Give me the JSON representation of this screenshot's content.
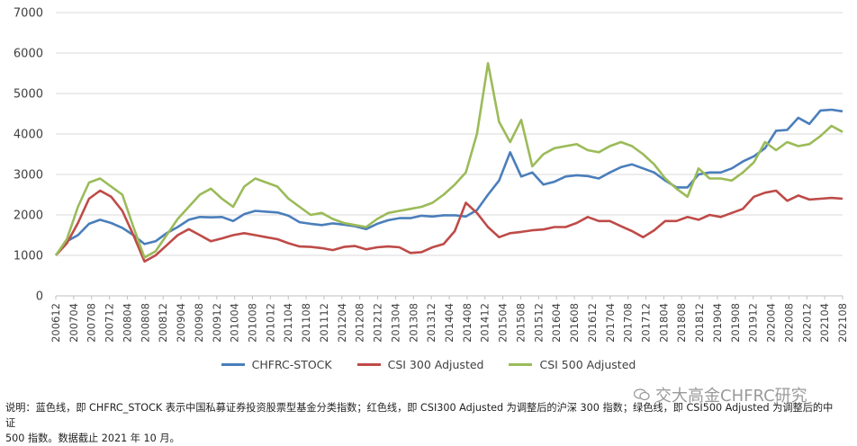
{
  "chart_data": {
    "type": "line",
    "title": "",
    "ylim": [
      0,
      7000
    ],
    "yticks": [
      0,
      1000,
      2000,
      3000,
      4000,
      5000,
      6000,
      7000
    ],
    "grid": true,
    "legend_position": "bottom",
    "x_tick_labels": [
      "200612",
      "200704",
      "200708",
      "200712",
      "200804",
      "200808",
      "200812",
      "200904",
      "200908",
      "200912",
      "201004",
      "201008",
      "201012",
      "201104",
      "201108",
      "201112",
      "201204",
      "201208",
      "201212",
      "201304",
      "201308",
      "201312",
      "201404",
      "201408",
      "201412",
      "201504",
      "201508",
      "201512",
      "201604",
      "201608",
      "201612",
      "201704",
      "201708",
      "201712",
      "201804",
      "201808",
      "201812",
      "201904",
      "201908",
      "201912",
      "202004",
      "202008",
      "202012",
      "202104",
      "202108"
    ],
    "series": [
      {
        "name": "CHFRC-STOCK",
        "color": "#4a7ebb",
        "values": [
          1000,
          1350,
          1500,
          1780,
          1880,
          1800,
          1680,
          1500,
          1280,
          1350,
          1550,
          1700,
          1880,
          1950,
          1940,
          1950,
          1850,
          2020,
          2100,
          2080,
          2060,
          1980,
          1820,
          1780,
          1750,
          1790,
          1760,
          1720,
          1650,
          1780,
          1870,
          1920,
          1920,
          1980,
          1960,
          1990,
          1990,
          1960,
          2120,
          2500,
          2850,
          3550,
          2950,
          3050,
          2750,
          2820,
          2950,
          2980,
          2960,
          2900,
          3050,
          3180,
          3250,
          3150,
          3050,
          2850,
          2680,
          2680,
          3000,
          3050,
          3050,
          3150,
          3320,
          3450,
          3650,
          4080,
          4100,
          4400,
          4250,
          4580,
          4600,
          4560
        ]
      },
      {
        "name": "CSI 300 Adjusted",
        "color": "#be4b48",
        "values": [
          1000,
          1300,
          1800,
          2400,
          2600,
          2450,
          2100,
          1500,
          850,
          1000,
          1250,
          1500,
          1650,
          1500,
          1350,
          1420,
          1500,
          1550,
          1500,
          1450,
          1400,
          1300,
          1220,
          1210,
          1180,
          1130,
          1210,
          1230,
          1150,
          1200,
          1220,
          1200,
          1060,
          1080,
          1200,
          1280,
          1600,
          2300,
          2050,
          1700,
          1450,
          1550,
          1580,
          1620,
          1640,
          1700,
          1700,
          1800,
          1950,
          1850,
          1850,
          1720,
          1600,
          1450,
          1620,
          1850,
          1850,
          1950,
          1880,
          2000,
          1950,
          2050,
          2150,
          2450,
          2550,
          2600,
          2350,
          2480,
          2380,
          2400,
          2420,
          2400
        ]
      },
      {
        "name": "CSI 500 Adjusted",
        "color": "#9bbb59",
        "values": [
          1000,
          1400,
          2200,
          2800,
          2900,
          2700,
          2500,
          1700,
          950,
          1100,
          1500,
          1900,
          2200,
          2500,
          2650,
          2400,
          2200,
          2700,
          2900,
          2800,
          2700,
          2400,
          2200,
          2000,
          2050,
          1900,
          1800,
          1750,
          1700,
          1900,
          2050,
          2100,
          2150,
          2200,
          2300,
          2500,
          2750,
          3050,
          4000,
          5750,
          4300,
          3800,
          4350,
          3200,
          3500,
          3650,
          3700,
          3750,
          3600,
          3550,
          3700,
          3800,
          3700,
          3500,
          3250,
          2900,
          2650,
          2450,
          3150,
          2900,
          2900,
          2850,
          3050,
          3300,
          3800,
          3600,
          3800,
          3700,
          3750,
          3950,
          4200,
          4050
        ]
      }
    ]
  },
  "legend": {
    "items": [
      {
        "label": "CHFRC-STOCK",
        "color": "#4a7ebb"
      },
      {
        "label": "CSI 300 Adjusted",
        "color": "#be4b48"
      },
      {
        "label": "CSI 500 Adjusted",
        "color": "#9bbb59"
      }
    ]
  },
  "watermark": {
    "text": "交大高金CHFRC研究"
  },
  "note": {
    "line1": "说明：蓝色线，即 CHFRC_STOCK 表示中国私募证券投资股票型基金分类指数；红色线，即 CSI300 Adjusted 为调整后的沪深 300 指数；绿色线，即 CSI500 Adjusted 为调整后的中证",
    "line2": "500 指数。数据截止 2021 年 10 月。"
  }
}
